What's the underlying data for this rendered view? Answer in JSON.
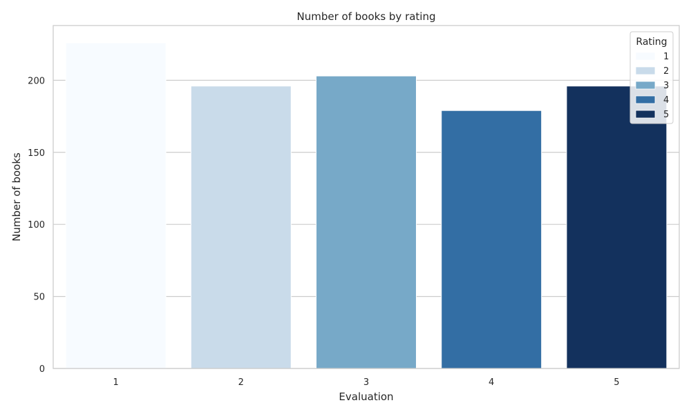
{
  "chart_data": {
    "type": "bar",
    "title": "Number of books by rating",
    "xlabel": "Evaluation",
    "ylabel": "Number of books",
    "categories": [
      "1",
      "2",
      "3",
      "4",
      "5"
    ],
    "values": [
      226,
      196,
      203,
      179,
      196
    ],
    "colors": [
      "#f7fbff",
      "#c9dbea",
      "#77a9c8",
      "#336ea4",
      "#13315d"
    ],
    "ylim": [
      0,
      238
    ],
    "yticks": [
      0,
      50,
      100,
      150,
      200
    ],
    "grid": "y",
    "legend": {
      "title": "Rating",
      "placement": "top-right",
      "labels": [
        "1",
        "2",
        "3",
        "4",
        "5"
      ]
    },
    "style": {
      "axis_color": "#cccccc",
      "grid_color": "#cccccc",
      "text_color": "#262626"
    }
  }
}
